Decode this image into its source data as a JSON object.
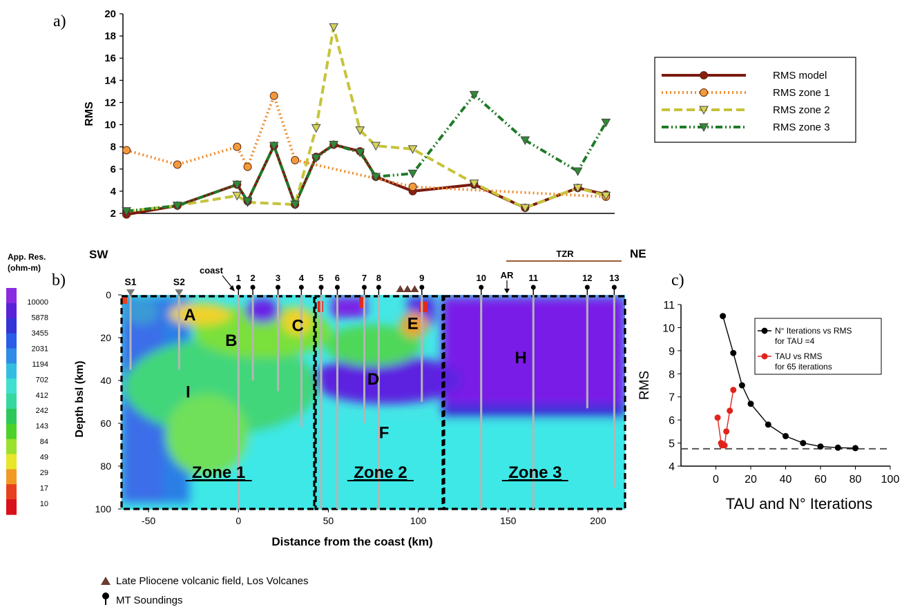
{
  "panel_labels": {
    "a": "a)",
    "b": "b)",
    "c": "c)"
  },
  "chart_data": [
    {
      "panel": "a",
      "type": "line",
      "title": "",
      "ylabel": "RMS",
      "xlabel": "",
      "ylim": [
        2,
        20
      ],
      "yticks": [
        "2",
        "4",
        "6",
        "8",
        "10",
        "12",
        "14",
        "16",
        "18",
        "20"
      ],
      "x": [
        -63,
        -34,
        0,
        6,
        21,
        33,
        45,
        55,
        70,
        79,
        100,
        135,
        164,
        194,
        210
      ],
      "legend_position": "right",
      "series": [
        {
          "name": "RMS model",
          "color": "#7a1a10",
          "dash": "",
          "marker": "circle",
          "marker_color": "#8b1d12",
          "values": [
            1.9,
            2.7,
            4.6,
            3.1,
            8.1,
            2.8,
            7.1,
            8.2,
            7.6,
            5.3,
            4.0,
            4.6,
            2.5,
            4.3,
            3.7
          ]
        },
        {
          "name": "RMS zone 1",
          "color": "#ee8a2a",
          "dash": "2,4",
          "marker": "circle",
          "marker_color": "#f39a3c",
          "values": [
            7.7,
            6.4,
            8.0,
            6.2,
            12.6,
            6.8,
            null,
            null,
            null,
            null,
            4.4,
            null,
            null,
            null,
            3.5
          ]
        },
        {
          "name": "RMS zone 2",
          "color": "#c6c33a",
          "dash": "12,6",
          "marker": "triangle",
          "marker_color": "#d4d25a",
          "values": [
            2.2,
            2.7,
            3.6,
            3.0,
            null,
            2.8,
            9.7,
            18.8,
            9.5,
            8.1,
            7.8,
            4.7,
            2.5,
            4.3,
            3.6
          ]
        },
        {
          "name": "RMS zone 3",
          "color": "#1f7a27",
          "dash": "10,4,2,4,2,4",
          "marker": "triangle",
          "marker_color": "#2e8b35",
          "values": [
            2.2,
            2.7,
            4.6,
            3.1,
            8.1,
            2.8,
            7.0,
            8.2,
            7.5,
            5.3,
            5.6,
            12.7,
            8.6,
            5.8,
            10.2
          ]
        }
      ]
    },
    {
      "panel": "b",
      "type": "heatmap",
      "title": "",
      "xlabel": "Distance from the coast (km)",
      "ylabel": "Depth bsl (km)",
      "xlim": [
        -65,
        215
      ],
      "ylim": [
        0,
        100
      ],
      "xticks": [
        "-50",
        "0",
        "50",
        "100",
        "150",
        "200"
      ],
      "yticks": [
        "0",
        "20",
        "40",
        "60",
        "80",
        "100"
      ],
      "colorbar": {
        "title": "App. Res.\n(ohm-m)",
        "labels": [
          "10000",
          "5878",
          "3455",
          "2031",
          "1194",
          "702",
          "412",
          "242",
          "143",
          "84",
          "49",
          "29",
          "17",
          "10"
        ],
        "colors": [
          "#8a2be2",
          "#5a22d8",
          "#3333d6",
          "#2a5ce8",
          "#2f8be8",
          "#33bde0",
          "#3fe0d0",
          "#34d8a0",
          "#2ec85a",
          "#4cd22a",
          "#9be02c",
          "#e8e62a",
          "#f09a25",
          "#e8401f",
          "#d9101a"
        ]
      },
      "orientation_left": "SW",
      "orientation_right": "NE",
      "tzr_label": "TZR",
      "coast_label": "coast",
      "ar_label": "AR",
      "soundings": [
        {
          "label": "S1",
          "x": -60,
          "depth": 35,
          "kind": "triangle"
        },
        {
          "label": "S2",
          "x": -33,
          "depth": 35,
          "kind": "triangle"
        },
        {
          "label": "1",
          "x": 0,
          "depth": 100,
          "kind": "pin"
        },
        {
          "label": "2",
          "x": 8,
          "depth": 40,
          "kind": "pin"
        },
        {
          "label": "3",
          "x": 22,
          "depth": 45,
          "kind": "pin"
        },
        {
          "label": "4",
          "x": 35,
          "depth": 62,
          "kind": "pin"
        },
        {
          "label": "5",
          "x": 46,
          "depth": 100,
          "kind": "pin"
        },
        {
          "label": "6",
          "x": 55,
          "depth": 100,
          "kind": "pin"
        },
        {
          "label": "7",
          "x": 70,
          "depth": 60,
          "kind": "pin"
        },
        {
          "label": "8",
          "x": 78,
          "depth": 100,
          "kind": "pin"
        },
        {
          "label": "9",
          "x": 102,
          "depth": 50,
          "kind": "pin"
        },
        {
          "label": "10",
          "x": 135,
          "depth": 100,
          "kind": "pin"
        },
        {
          "label": "11",
          "x": 164,
          "depth": 100,
          "kind": "pin"
        },
        {
          "label": "12",
          "x": 194,
          "depth": 53,
          "kind": "pin"
        },
        {
          "label": "13",
          "x": 209,
          "depth": 90,
          "kind": "pin"
        }
      ],
      "anomalies": [
        {
          "label": "A",
          "x": -27,
          "depth": 9
        },
        {
          "label": "B",
          "x": -4,
          "depth": 21
        },
        {
          "label": "C",
          "x": 33,
          "depth": 14
        },
        {
          "label": "D",
          "x": 75,
          "depth": 39
        },
        {
          "label": "E",
          "x": 97,
          "depth": 13
        },
        {
          "label": "F",
          "x": 81,
          "depth": 64
        },
        {
          "label": "H",
          "x": 157,
          "depth": 29
        },
        {
          "label": "I",
          "x": -28,
          "depth": 45
        }
      ],
      "zones": [
        {
          "label": "Zone 1",
          "x0": -65,
          "x1": 43
        },
        {
          "label": "Zone 2",
          "x0": 43,
          "x1": 115
        },
        {
          "label": "Zone 3",
          "x0": 115,
          "x1": 215
        }
      ],
      "volcano_x": [
        90,
        94,
        98
      ]
    },
    {
      "panel": "c",
      "type": "scatter",
      "title": "",
      "xlabel": "TAU and N° Iterations",
      "ylabel": "RMS",
      "xlim": [
        -20,
        100
      ],
      "ylim": [
        4,
        11
      ],
      "xticks": [
        "0",
        "20",
        "40",
        "60",
        "80",
        "100"
      ],
      "yticks": [
        "4",
        "5",
        "6",
        "7",
        "8",
        "9",
        "10",
        "11"
      ],
      "reference_line": 4.75,
      "legend_position": "top-right",
      "series": [
        {
          "name": "N° Iterations vs RMS\nfor TAU =4",
          "color": "#000000",
          "x": [
            4,
            10,
            15,
            20,
            30,
            40,
            50,
            60,
            70,
            80
          ],
          "y": [
            10.5,
            8.9,
            7.5,
            6.7,
            5.8,
            5.3,
            5.0,
            4.85,
            4.8,
            4.78
          ]
        },
        {
          "name": "TAU vs RMS\nfor 65 iterations",
          "color": "#e0241c",
          "x": [
            1,
            3,
            3.5,
            4,
            5,
            6,
            8,
            10
          ],
          "y": [
            6.1,
            5.0,
            4.9,
            4.95,
            4.9,
            5.5,
            6.4,
            7.3
          ]
        }
      ]
    }
  ],
  "footer_legend": [
    {
      "symbol": "volcano-triangle",
      "label": "Late Pliocene volcanic field, Los Volcanes"
    },
    {
      "symbol": "sounding-pin",
      "label": "MT Soundings"
    }
  ]
}
